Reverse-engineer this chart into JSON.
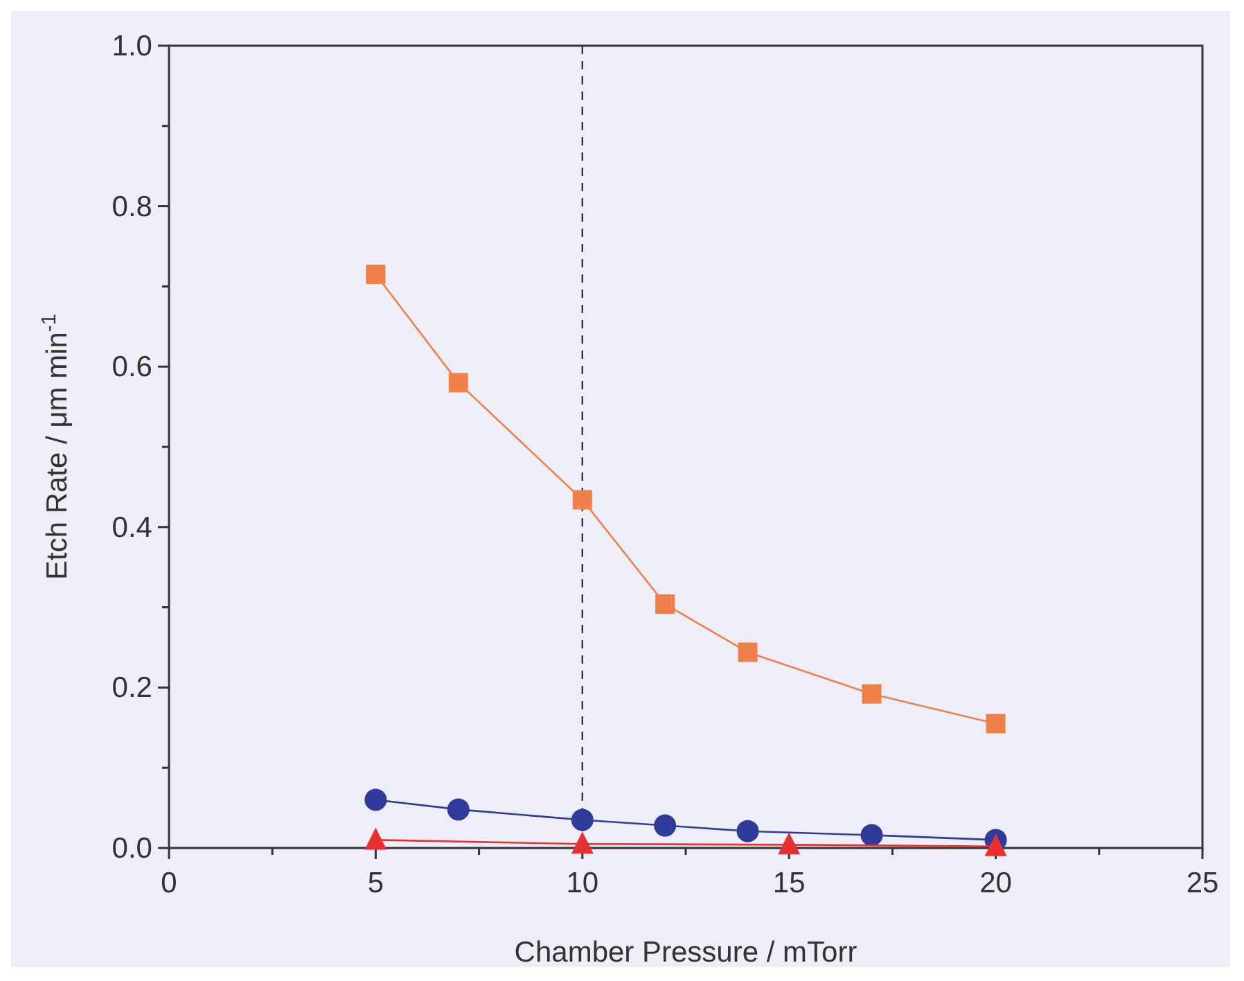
{
  "chart_data": {
    "type": "line",
    "xlabel": "Chamber Pressure / mTorr",
    "ylabel": "Etch Rate / μm min$^{-1}$",
    "xlim": [
      0,
      25
    ],
    "ylim": [
      0,
      1
    ],
    "xticks": [
      0,
      {
        "value": 2.5,
        "label": null
      },
      5,
      {
        "value": 7.5,
        "label": null
      },
      10,
      {
        "value": 12.5,
        "label": null
      },
      15,
      {
        "value": 17.5,
        "label": null
      },
      20,
      {
        "value": 22.5,
        "label": null
      },
      25
    ],
    "yticks": [
      "0.0",
      {
        "value": 0.1,
        "label": null
      },
      {
        "value": 0.2,
        "label": "0.2"
      },
      {
        "value": 0.3,
        "label": null
      },
      {
        "value": 0.4,
        "label": "0.4"
      },
      {
        "value": 0.5,
        "label": null
      },
      {
        "value": 0.6,
        "label": "0.6"
      },
      {
        "value": 0.7,
        "label": null
      },
      {
        "value": 0.8,
        "label": "0.8"
      },
      {
        "value": 0.9,
        "label": null
      },
      {
        "value": 1,
        "label": "1.0"
      }
    ],
    "series": [
      {
        "color": "#f0804a",
        "marker": "square",
        "x": [
          5,
          7,
          10,
          12,
          14,
          17,
          20
        ],
        "values": [
          0.715,
          0.58,
          0.434,
          0.304,
          0.244,
          0.192,
          0.155
        ]
      },
      {
        "color": "#303a9a",
        "marker": "circle",
        "x": [
          5,
          7,
          10,
          12,
          14,
          17,
          20
        ],
        "values": [
          0.06,
          0.048,
          0.035,
          0.028,
          0.021,
          0.016,
          0.01
        ]
      },
      {
        "color": "#e83030",
        "marker": "triangle",
        "x": [
          5,
          10,
          15,
          20
        ],
        "values": [
          0.01,
          0.005,
          0.004,
          0.002
        ]
      }
    ],
    "ref_lines": [
      {
        "axis": "x",
        "value": 10,
        "line_style": "dashed",
        "color": "#333333"
      }
    ],
    "grid": false,
    "line_style": "solid"
  }
}
